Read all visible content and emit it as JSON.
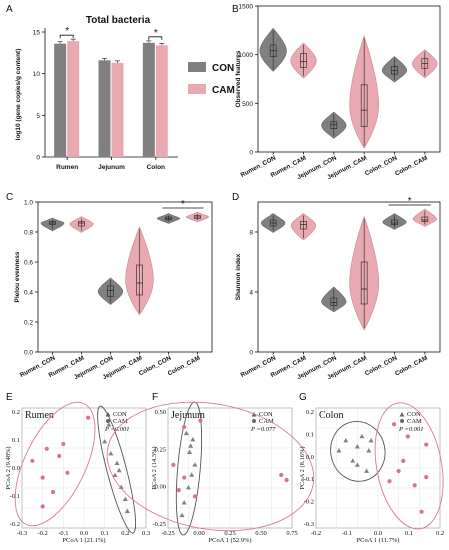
{
  "colors": {
    "con": "#808080",
    "cam": "#e8a9b0",
    "cam_edge": "#c98b94",
    "ell_con": "#555555",
    "ell_cam": "#d97a8a",
    "grid": "#e6e6e6"
  },
  "panels": {
    "A": {
      "letter": "A"
    },
    "B": {
      "letter": "B"
    },
    "C": {
      "letter": "C"
    },
    "D": {
      "letter": "D"
    },
    "E": {
      "letter": "E"
    },
    "F": {
      "letter": "F"
    },
    "G": {
      "letter": "G"
    }
  },
  "legend": {
    "con": "CON",
    "cam": "CAM"
  },
  "chart_data": [
    {
      "id": "A",
      "type": "bar",
      "title": "Total bacteria",
      "ylabel": "log10 (gene copies/g content)",
      "ylim": [
        0,
        15
      ],
      "yticks": [
        "0",
        "5",
        "10",
        "15"
      ],
      "categories": [
        "Rumen",
        "Jejunum",
        "Colon"
      ],
      "series": [
        {
          "name": "CON",
          "values": [
            13.6,
            11.6,
            13.7
          ]
        },
        {
          "name": "CAM",
          "values": [
            13.9,
            11.3,
            13.4
          ]
        }
      ],
      "sig": [
        "*",
        "",
        "*"
      ]
    },
    {
      "id": "B",
      "type": "violin",
      "ylabel": "Observed features",
      "ylim": [
        0,
        1500
      ],
      "yticks": [
        "0",
        "500",
        "1000",
        "1500"
      ],
      "categories": [
        "Rumen_CON",
        "Rumen_CAM",
        "Jejunum_CON",
        "Jejunum_CAM",
        "Colon_CON",
        "Colon_CAM"
      ],
      "groups": [
        "con",
        "cam",
        "con",
        "cam",
        "con",
        "cam"
      ],
      "median": [
        1040,
        930,
        280,
        430,
        840,
        910
      ],
      "q1": [
        980,
        870,
        240,
        260,
        800,
        860
      ],
      "q3": [
        1100,
        1010,
        310,
        690,
        880,
        960
      ],
      "min": [
        850,
        780,
        160,
        60,
        740,
        780
      ],
      "max": [
        1250,
        1100,
        390,
        1170,
        960,
        1030
      ],
      "sig": []
    },
    {
      "id": "C",
      "type": "violin",
      "ylabel": "Pielou evenness",
      "ylim": [
        0,
        1.0
      ],
      "yticks": [
        "0.0",
        "0.2",
        "0.4",
        "0.6",
        "0.8",
        "1.0"
      ],
      "categories": [
        "Rumen_CON",
        "Rumen_CAM",
        "Jejunum_CON",
        "Jejunum_CAM",
        "Colon_CON",
        "Colon_CAM"
      ],
      "groups": [
        "con",
        "cam",
        "con",
        "cam",
        "con",
        "cam"
      ],
      "median": [
        0.86,
        0.86,
        0.41,
        0.46,
        0.89,
        0.9
      ],
      "q1": [
        0.85,
        0.84,
        0.37,
        0.38,
        0.88,
        0.89
      ],
      "q3": [
        0.87,
        0.87,
        0.44,
        0.58,
        0.9,
        0.91
      ],
      "min": [
        0.82,
        0.81,
        0.33,
        0.26,
        0.87,
        0.88
      ],
      "max": [
        0.88,
        0.89,
        0.48,
        0.82,
        0.91,
        0.92
      ],
      "sig": [
        "Colon",
        "*"
      ]
    },
    {
      "id": "D",
      "type": "violin",
      "ylabel": "Shannon index",
      "ylim": [
        0,
        10
      ],
      "yticks": [
        "0",
        "4",
        "8"
      ],
      "categories": [
        "Rumen_CON",
        "Rumen_CAM",
        "Jejunum_CON",
        "Jejunum_CAM",
        "Colon_CON",
        "Colon_CAM"
      ],
      "groups": [
        "con",
        "cam",
        "con",
        "cam",
        "con",
        "cam"
      ],
      "median": [
        8.6,
        8.5,
        3.3,
        4.2,
        8.6,
        8.8
      ],
      "q1": [
        8.4,
        8.2,
        3.1,
        3.2,
        8.5,
        8.7
      ],
      "q3": [
        8.8,
        8.7,
        3.6,
        6.0,
        8.8,
        9.0
      ],
      "min": [
        8.1,
        7.6,
        2.8,
        1.6,
        8.3,
        8.5
      ],
      "max": [
        9.1,
        9.1,
        4.2,
        8.9,
        9.1,
        9.4
      ],
      "sig": [
        "Colon",
        "*"
      ]
    },
    {
      "id": "E",
      "type": "scatter",
      "title": "Rumen",
      "xlabel": "PCoA 1 (21.1%)",
      "ylabel": "PCoA 2 (9.48%)",
      "p": "P =0.001",
      "xticks": [
        "-0.3",
        "-0.2",
        "-0.1",
        "0.0",
        "0.1",
        "0.2",
        "0.3"
      ],
      "yticks": [
        "0.2",
        "0.1",
        "0.0",
        "-0.1",
        "-0.2"
      ],
      "xlim": [
        -0.3,
        0.3
      ],
      "ylim": [
        -0.25,
        0.25
      ],
      "con": [
        [
          0.12,
          0.18
        ],
        [
          0.1,
          0.11
        ],
        [
          0.13,
          0.06
        ],
        [
          0.16,
          0.02
        ],
        [
          0.15,
          -0.03
        ],
        [
          0.18,
          -0.08
        ],
        [
          0.2,
          -0.13
        ],
        [
          0.21,
          -0.18
        ],
        [
          0.17,
          -0.01
        ]
      ],
      "cam": [
        [
          -0.25,
          0.03
        ],
        [
          -0.18,
          0.08
        ],
        [
          -0.1,
          0.1
        ],
        [
          -0.2,
          -0.04
        ],
        [
          -0.15,
          -0.1
        ],
        [
          -0.2,
          -0.16
        ],
        [
          -0.08,
          -0.02
        ],
        [
          -0.12,
          0.05
        ],
        [
          0.02,
          0.21
        ]
      ]
    },
    {
      "id": "F",
      "type": "scatter",
      "title": "Jejunum",
      "xlabel": "PCoA 1 (52.9%)",
      "ylabel": "PCoA 2 (14.3%)",
      "p": "P =0.077",
      "xticks": [
        "-0.25",
        "0.00",
        "0.25",
        "0.50",
        "0.75"
      ],
      "yticks": [
        "0.50",
        "0.25",
        "0.00",
        "-0.25"
      ],
      "xlim": [
        -0.35,
        0.8
      ],
      "ylim": [
        -0.4,
        0.55
      ],
      "con": [
        [
          -0.18,
          0.35
        ],
        [
          -0.12,
          0.3
        ],
        [
          -0.15,
          0.2
        ],
        [
          -0.1,
          0.1
        ],
        [
          -0.13,
          0.02
        ],
        [
          -0.16,
          -0.08
        ],
        [
          -0.2,
          -0.2
        ],
        [
          -0.22,
          -0.3
        ],
        [
          -0.14,
          0.25
        ]
      ],
      "cam": [
        [
          -0.2,
          0.4
        ],
        [
          -0.05,
          0.45
        ],
        [
          -0.3,
          0.1
        ],
        [
          -0.25,
          -0.1
        ],
        [
          0.7,
          0.02
        ],
        [
          0.75,
          -0.02
        ],
        [
          -0.2,
          0.0
        ],
        [
          -0.1,
          -0.15
        ]
      ]
    },
    {
      "id": "G",
      "type": "scatter",
      "title": "Colon",
      "xlabel": "PCoA 1 (11.7%)",
      "ylabel": "PCoA 2 (8.16%)",
      "p": "P =0.001",
      "xticks": [
        "-0.2",
        "-0.1",
        "0.0",
        "0.1",
        "0.2"
      ],
      "yticks": [
        "0.2",
        "0.1",
        "0.0",
        "-0.1",
        "-0.2",
        "-0.3"
      ],
      "xlim": [
        -0.28,
        0.26
      ],
      "ylim": [
        -0.33,
        0.26
      ],
      "con": [
        [
          -0.15,
          0.1
        ],
        [
          -0.1,
          0.07
        ],
        [
          -0.12,
          0.0
        ],
        [
          -0.08,
          0.12
        ],
        [
          -0.05,
          0.05
        ],
        [
          -0.18,
          0.05
        ],
        [
          -0.04,
          0.1
        ],
        [
          -0.1,
          -0.02
        ],
        [
          -0.06,
          -0.05
        ]
      ],
      "cam": [
        [
          0.06,
          0.18
        ],
        [
          0.12,
          0.12
        ],
        [
          0.2,
          0.08
        ],
        [
          0.08,
          -0.05
        ],
        [
          0.15,
          -0.12
        ],
        [
          0.2,
          -0.08
        ],
        [
          0.1,
          0.0
        ],
        [
          0.18,
          -0.25
        ],
        [
          0.04,
          -0.1
        ]
      ]
    }
  ]
}
